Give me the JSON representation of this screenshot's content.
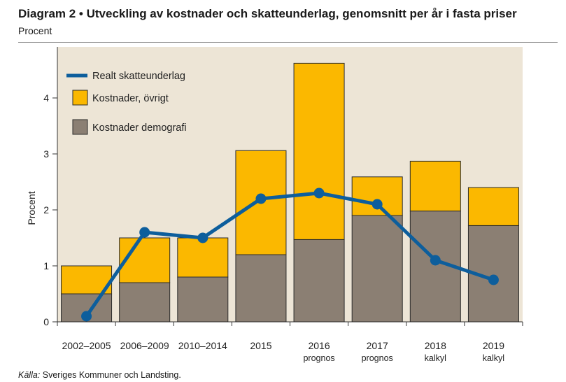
{
  "header": {
    "title": "Diagram 2 • Utveckling av kostnader och skatteunderlag, genomsnitt per år i fasta priser",
    "subtitle": "Procent"
  },
  "footer": {
    "source_label": "Källa:",
    "source_text": "Sveriges Kommuner och Landsting."
  },
  "colors": {
    "plot_background": "#ede5d6",
    "demografi": "#8b7f73",
    "ovrigt": "#fbb800",
    "line": "#0d5e9c",
    "axis": "#333333"
  },
  "chart_data": {
    "type": "bar",
    "stacked": true,
    "title": "Diagram 2 • Utveckling av kostnader och skatteunderlag, genomsnitt per år i fasta priser",
    "ylabel": "Procent",
    "xlabel": "",
    "ylim": [
      0,
      4.9
    ],
    "yticks": [
      0,
      1,
      2,
      3,
      4
    ],
    "categories": [
      [
        "2002–2005"
      ],
      [
        "2006–2009"
      ],
      [
        "2010–2014"
      ],
      [
        "2015"
      ],
      [
        "2016",
        "prognos"
      ],
      [
        "2017",
        "prognos"
      ],
      [
        "2018",
        "kalkyl"
      ],
      [
        "2019",
        "kalkyl"
      ]
    ],
    "series": [
      {
        "name": "Kostnader demografi",
        "kind": "bar",
        "values": [
          0.5,
          0.7,
          0.8,
          1.2,
          1.47,
          1.9,
          1.98,
          1.72
        ]
      },
      {
        "name": "Kostnader, övrigt",
        "kind": "bar",
        "values": [
          0.5,
          0.8,
          0.7,
          1.86,
          3.15,
          0.69,
          0.89,
          0.68
        ]
      },
      {
        "name": "Realt skatteunderlag",
        "kind": "line",
        "values": [
          0.1,
          1.6,
          1.5,
          2.2,
          2.3,
          2.1,
          1.1,
          0.75
        ]
      }
    ],
    "legend": {
      "position": "top-left",
      "entries": [
        "Realt skatteunderlag",
        "Kostnader, övrigt",
        "Kostnader demografi"
      ]
    },
    "grid": false
  }
}
